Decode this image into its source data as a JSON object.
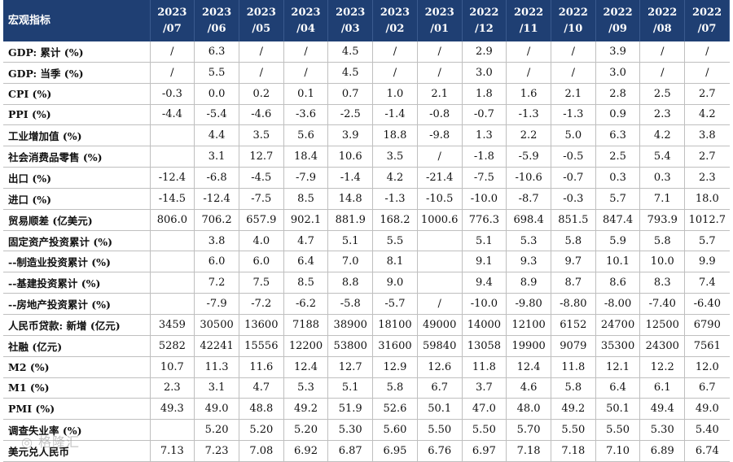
{
  "header": {
    "label": "宏观指标",
    "periods": [
      [
        "2023",
        "/07"
      ],
      [
        "2023",
        "/06"
      ],
      [
        "2023",
        "/05"
      ],
      [
        "2023",
        "/04"
      ],
      [
        "2023",
        "/03"
      ],
      [
        "2023",
        "/02"
      ],
      [
        "2023",
        "/01"
      ],
      [
        "2022",
        "/12"
      ],
      [
        "2022",
        "/11"
      ],
      [
        "2022",
        "/10"
      ],
      [
        "2022",
        "/09"
      ],
      [
        "2022",
        "/08"
      ],
      [
        "2022",
        "/07"
      ]
    ]
  },
  "rows": [
    {
      "label": "GDP: 累计 (%)",
      "values": [
        "/",
        "6.3",
        "/",
        "/",
        "4.5",
        "/",
        "/",
        "2.9",
        "/",
        "/",
        "3.9",
        "/",
        "/"
      ]
    },
    {
      "label": "GDP: 当季 (%)",
      "values": [
        "/",
        "5.5",
        "/",
        "/",
        "4.5",
        "/",
        "/",
        "3.0",
        "/",
        "/",
        "3.0",
        "/",
        "/"
      ]
    },
    {
      "label": "CPI (%)",
      "values": [
        "-0.3",
        "0.0",
        "0.2",
        "0.1",
        "0.7",
        "1.0",
        "2.1",
        "1.8",
        "1.6",
        "2.1",
        "2.8",
        "2.5",
        "2.7"
      ]
    },
    {
      "label": "PPI (%)",
      "values": [
        "-4.4",
        "-5.4",
        "-4.6",
        "-3.6",
        "-2.5",
        "-1.4",
        "-0.8",
        "-0.7",
        "-1.3",
        "-1.3",
        "0.9",
        "2.3",
        "4.2"
      ]
    },
    {
      "label": "工业增加值 (%)",
      "values": [
        "",
        "4.4",
        "3.5",
        "5.6",
        "3.9",
        "18.8",
        "-9.8",
        "1.3",
        "2.2",
        "5.0",
        "6.3",
        "4.2",
        "3.8"
      ]
    },
    {
      "label": "社会消费品零售 (%)",
      "values": [
        "",
        "3.1",
        "12.7",
        "18.4",
        "10.6",
        "3.5",
        "/",
        "-1.8",
        "-5.9",
        "-0.5",
        "2.5",
        "5.4",
        "2.7"
      ]
    },
    {
      "label": "出口 (%)",
      "values": [
        "-12.4",
        "-6.8",
        "-4.5",
        "-7.9",
        "-1.4",
        "4.2",
        "-21.4",
        "-7.5",
        "-10.6",
        "-0.7",
        "0.3",
        "0.3",
        "2.3"
      ]
    },
    {
      "label": "进口 (%)",
      "values": [
        "-14.5",
        "-12.4",
        "-7.5",
        "8.5",
        "14.8",
        "-1.3",
        "-10.5",
        "-10.0",
        "-8.7",
        "-0.3",
        "5.7",
        "7.1",
        "18.0"
      ]
    },
    {
      "label": "贸易顺差 (亿美元)",
      "values": [
        "806.0",
        "706.2",
        "657.9",
        "902.1",
        "881.9",
        "168.2",
        "1000.6",
        "776.3",
        "698.4",
        "851.5",
        "847.4",
        "793.9",
        "1012.7"
      ]
    },
    {
      "label": "固定资产投资累计 (%)",
      "values": [
        "",
        "3.8",
        "4.0",
        "4.7",
        "5.1",
        "5.5",
        "",
        "5.1",
        "5.3",
        "5.8",
        "5.9",
        "5.8",
        "5.7"
      ]
    },
    {
      "label": "--制造业投资累计 (%)",
      "values": [
        "",
        "6.0",
        "6.0",
        "6.4",
        "7.0",
        "8.1",
        "",
        "9.1",
        "9.3",
        "9.7",
        "10.1",
        "10.0",
        "9.9"
      ]
    },
    {
      "label": "--基建投资累计 (%)",
      "values": [
        "",
        "7.2",
        "7.5",
        "8.5",
        "8.8",
        "9.0",
        "",
        "9.4",
        "8.9",
        "8.7",
        "8.6",
        "8.3",
        "7.4"
      ]
    },
    {
      "label": "--房地产投资累计 (%)",
      "values": [
        "",
        "-7.9",
        "-7.2",
        "-6.2",
        "-5.8",
        "-5.7",
        "/",
        "-10.0",
        "-9.80",
        "-8.80",
        "-8.00",
        "-7.40",
        "-6.40"
      ]
    },
    {
      "label": "人民币贷款: 新增 (亿元)",
      "values": [
        "3459",
        "30500",
        "13600",
        "7188",
        "38900",
        "18100",
        "49000",
        "14000",
        "12100",
        "6152",
        "24700",
        "12500",
        "6790"
      ]
    },
    {
      "label": "社融 (亿元)",
      "values": [
        "5282",
        "42241",
        "15556",
        "12200",
        "53800",
        "31600",
        "59840",
        "13058",
        "19900",
        "9079",
        "35300",
        "24300",
        "7561"
      ]
    },
    {
      "label": "M2 (%)",
      "values": [
        "10.7",
        "11.3",
        "11.6",
        "12.4",
        "12.7",
        "12.9",
        "12.6",
        "11.8",
        "12.4",
        "11.8",
        "12.1",
        "12.2",
        "12.0"
      ]
    },
    {
      "label": "M1 (%)",
      "values": [
        "2.3",
        "3.1",
        "4.7",
        "5.3",
        "5.1",
        "5.8",
        "6.7",
        "3.7",
        "4.6",
        "5.8",
        "6.4",
        "6.1",
        "6.7"
      ]
    },
    {
      "label": "PMI (%)",
      "values": [
        "49.3",
        "49.0",
        "48.8",
        "49.2",
        "51.9",
        "52.6",
        "50.1",
        "47.0",
        "48.0",
        "49.2",
        "50.1",
        "49.4",
        "49.0"
      ]
    },
    {
      "label": "调查失业率 (%)",
      "values": [
        "",
        "5.20",
        "5.20",
        "5.20",
        "5.30",
        "5.60",
        "5.50",
        "5.50",
        "5.70",
        "5.50",
        "5.50",
        "5.30",
        "5.40"
      ]
    },
    {
      "label": "美元兑人民币",
      "values": [
        "7.13",
        "7.23",
        "7.08",
        "6.92",
        "6.87",
        "6.95",
        "6.76",
        "6.97",
        "7.18",
        "7.18",
        "7.10",
        "6.89",
        "6.74"
      ]
    }
  ]
}
